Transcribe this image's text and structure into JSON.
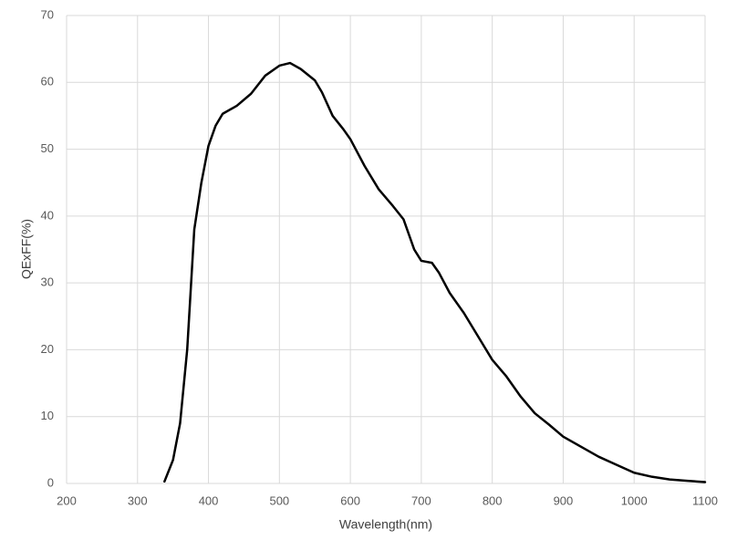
{
  "chart_data": {
    "type": "line",
    "x_label": "Wavelength(nm)",
    "y_label": "QExFF(%)",
    "xlim": [
      200,
      1100
    ],
    "xticks": [
      200,
      300,
      400,
      500,
      600,
      700,
      800,
      900,
      1000,
      1100
    ],
    "ylim": [
      0,
      70
    ],
    "yticks": [
      0,
      10,
      20,
      30,
      40,
      50,
      60,
      70
    ],
    "grid": true,
    "x": [
      338,
      350,
      360,
      370,
      380,
      390,
      400,
      410,
      420,
      440,
      460,
      480,
      500,
      515,
      530,
      550,
      560,
      575,
      590,
      600,
      620,
      640,
      660,
      675,
      690,
      700,
      715,
      725,
      740,
      760,
      780,
      800,
      820,
      840,
      860,
      880,
      900,
      925,
      950,
      975,
      1000,
      1025,
      1050,
      1075,
      1100
    ],
    "series": [
      {
        "name": "QExFF",
        "color": "#000000",
        "values": [
          0.3,
          3.5,
          9,
          20,
          38,
          45,
          50.5,
          53.5,
          55.3,
          56.5,
          58.3,
          61,
          62.5,
          62.9,
          62,
          60.3,
          58.5,
          55,
          53,
          51.5,
          47.5,
          44,
          41.5,
          39.5,
          35,
          33.3,
          33,
          31.5,
          28.5,
          25.5,
          22,
          18.5,
          16,
          13,
          10.5,
          8.8,
          7,
          5.5,
          4,
          2.8,
          1.6,
          1,
          0.6,
          0.4,
          0.2
        ]
      }
    ]
  }
}
